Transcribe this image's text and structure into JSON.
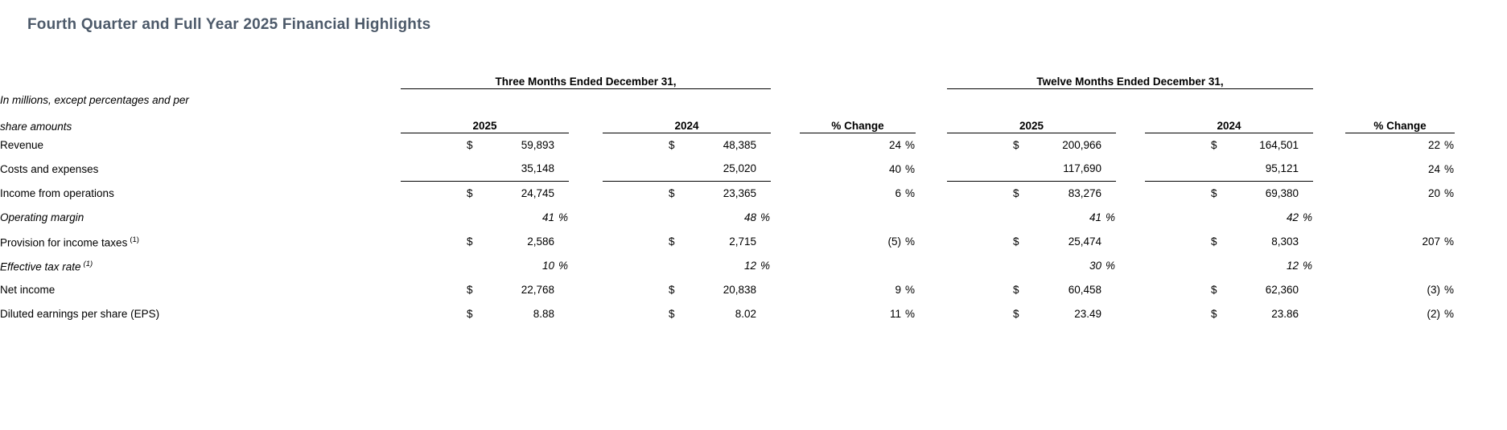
{
  "page": {
    "title": "Fourth Quarter and Full Year 2025 Financial Highlights"
  },
  "colors": {
    "title_text": "#4d5a6a",
    "body_text": "#000000",
    "rule_lines": "#000000",
    "background": "#ffffff"
  },
  "table": {
    "note_line1": "In millions, except percentages and per",
    "note_line2": "share amounts",
    "group_headers": [
      {
        "label": "Three Months Ended December 31,"
      },
      {
        "label": "Twelve Months Ended December 31,"
      }
    ],
    "column_headers": [
      "2025",
      "2024",
      "% Change",
      "2025",
      "2024",
      "% Change"
    ],
    "rows": [
      {
        "label": "Revenue",
        "sup": "",
        "style": "normal",
        "rule_below": false,
        "cells": [
          {
            "d": "$",
            "v": "59,893",
            "s": ""
          },
          {
            "d": "$",
            "v": "48,385",
            "s": ""
          },
          {
            "d": "",
            "v": "24",
            "s": "%"
          },
          {
            "d": "$",
            "v": "200,966",
            "s": ""
          },
          {
            "d": "$",
            "v": "164,501",
            "s": ""
          },
          {
            "d": "",
            "v": "22",
            "s": "%"
          }
        ]
      },
      {
        "label": "Costs and expenses",
        "sup": "",
        "style": "normal",
        "rule_below": true,
        "cells": [
          {
            "d": "",
            "v": "35,148",
            "s": ""
          },
          {
            "d": "",
            "v": "25,020",
            "s": ""
          },
          {
            "d": "",
            "v": "40",
            "s": "%"
          },
          {
            "d": "",
            "v": "117,690",
            "s": ""
          },
          {
            "d": "",
            "v": "95,121",
            "s": ""
          },
          {
            "d": "",
            "v": "24",
            "s": "%"
          }
        ]
      },
      {
        "label": "Income from operations",
        "sup": "",
        "style": "normal",
        "rule_below": false,
        "cells": [
          {
            "d": "$",
            "v": "24,745",
            "s": ""
          },
          {
            "d": "$",
            "v": "23,365",
            "s": ""
          },
          {
            "d": "",
            "v": "6",
            "s": "%"
          },
          {
            "d": "$",
            "v": "83,276",
            "s": ""
          },
          {
            "d": "$",
            "v": "69,380",
            "s": ""
          },
          {
            "d": "",
            "v": "20",
            "s": "%"
          }
        ]
      },
      {
        "label": "Operating margin",
        "sup": "",
        "style": "italic",
        "rule_below": false,
        "cells": [
          {
            "d": "",
            "v": "41",
            "s": "%"
          },
          {
            "d": "",
            "v": "48",
            "s": "%"
          },
          {
            "d": "",
            "v": "",
            "s": ""
          },
          {
            "d": "",
            "v": "41",
            "s": "%"
          },
          {
            "d": "",
            "v": "42",
            "s": "%"
          },
          {
            "d": "",
            "v": "",
            "s": ""
          }
        ]
      },
      {
        "label": "Provision for income taxes",
        "sup": "(1)",
        "style": "normal",
        "rule_below": false,
        "cells": [
          {
            "d": "$",
            "v": "2,586",
            "s": ""
          },
          {
            "d": "$",
            "v": "2,715",
            "s": ""
          },
          {
            "d": "",
            "v": "(5)",
            "s": "%"
          },
          {
            "d": "$",
            "v": "25,474",
            "s": ""
          },
          {
            "d": "$",
            "v": "8,303",
            "s": ""
          },
          {
            "d": "",
            "v": "207",
            "s": "%"
          }
        ]
      },
      {
        "label": "Effective tax rate",
        "sup": "(1)",
        "style": "italic",
        "rule_below": false,
        "cells": [
          {
            "d": "",
            "v": "10",
            "s": "%"
          },
          {
            "d": "",
            "v": "12",
            "s": "%"
          },
          {
            "d": "",
            "v": "",
            "s": ""
          },
          {
            "d": "",
            "v": "30",
            "s": "%"
          },
          {
            "d": "",
            "v": "12",
            "s": "%"
          },
          {
            "d": "",
            "v": "",
            "s": ""
          }
        ]
      },
      {
        "label": "Net income",
        "sup": "",
        "style": "normal",
        "rule_below": false,
        "cells": [
          {
            "d": "$",
            "v": "22,768",
            "s": ""
          },
          {
            "d": "$",
            "v": "20,838",
            "s": ""
          },
          {
            "d": "",
            "v": "9",
            "s": "%"
          },
          {
            "d": "$",
            "v": "60,458",
            "s": ""
          },
          {
            "d": "$",
            "v": "62,360",
            "s": ""
          },
          {
            "d": "",
            "v": "(3)",
            "s": "%"
          }
        ]
      },
      {
        "label": "Diluted earnings per share (EPS)",
        "sup": "",
        "style": "normal",
        "rule_below": false,
        "cells": [
          {
            "d": "$",
            "v": "8.88",
            "s": ""
          },
          {
            "d": "$",
            "v": "8.02",
            "s": ""
          },
          {
            "d": "",
            "v": "11",
            "s": "%"
          },
          {
            "d": "$",
            "v": "23.49",
            "s": ""
          },
          {
            "d": "$",
            "v": "23.86",
            "s": ""
          },
          {
            "d": "",
            "v": "(2)",
            "s": "%"
          }
        ]
      }
    ]
  }
}
